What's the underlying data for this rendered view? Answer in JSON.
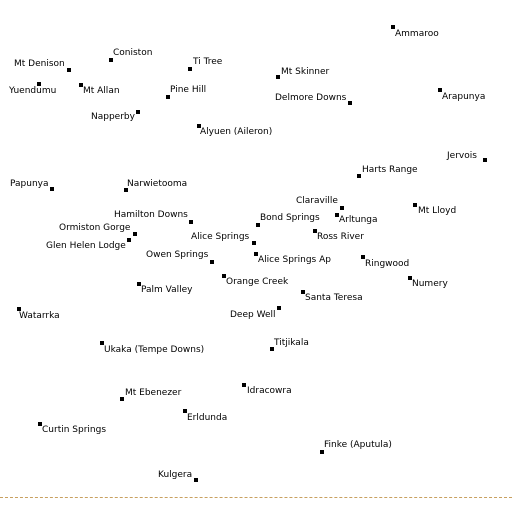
{
  "map": {
    "boundary_color": "#c8a060",
    "places": [
      {
        "id": "ammaroo",
        "name": "Ammaroo"
      },
      {
        "id": "coniston",
        "name": "Coniston"
      },
      {
        "id": "mt-denison",
        "name": "Mt Denison"
      },
      {
        "id": "ti-tree",
        "name": "Ti Tree"
      },
      {
        "id": "mt-skinner",
        "name": "Mt Skinner"
      },
      {
        "id": "yuendumu",
        "name": "Yuendumu"
      },
      {
        "id": "mt-allan",
        "name": "Mt Allan"
      },
      {
        "id": "pine-hill",
        "name": "Pine Hill"
      },
      {
        "id": "delmore-downs",
        "name": "Delmore Downs"
      },
      {
        "id": "arapunya",
        "name": "Arapunya"
      },
      {
        "id": "napperby",
        "name": "Napperby"
      },
      {
        "id": "alyuen",
        "name": "Alyuen (Aileron)"
      },
      {
        "id": "jervois",
        "name": "Jervois"
      },
      {
        "id": "harts-range",
        "name": "Harts Range"
      },
      {
        "id": "papunya",
        "name": "Papunya"
      },
      {
        "id": "narwietooma",
        "name": "Narwietooma"
      },
      {
        "id": "claraville",
        "name": "Claraville"
      },
      {
        "id": "mt-lloyd",
        "name": "Mt Lloyd"
      },
      {
        "id": "hamilton-downs",
        "name": "Hamilton Downs"
      },
      {
        "id": "bond-springs",
        "name": "Bond Springs"
      },
      {
        "id": "arltunga",
        "name": "Arltunga"
      },
      {
        "id": "ormiston-gorge",
        "name": "Ormiston Gorge"
      },
      {
        "id": "alice-springs",
        "name": "Alice Springs"
      },
      {
        "id": "ross-river",
        "name": "Ross River"
      },
      {
        "id": "glen-helen-lodge",
        "name": "Glen Helen Lodge"
      },
      {
        "id": "owen-springs",
        "name": "Owen Springs"
      },
      {
        "id": "alice-springs-ap",
        "name": "Alice Springs Ap"
      },
      {
        "id": "ringwood",
        "name": "Ringwood"
      },
      {
        "id": "orange-creek",
        "name": "Orange Creek"
      },
      {
        "id": "numery",
        "name": "Numery"
      },
      {
        "id": "palm-valley",
        "name": "Palm Valley"
      },
      {
        "id": "santa-teresa",
        "name": "Santa Teresa"
      },
      {
        "id": "watarrka",
        "name": "Watarrka"
      },
      {
        "id": "deep-well",
        "name": "Deep Well"
      },
      {
        "id": "titjikala",
        "name": "Titjikala"
      },
      {
        "id": "ukaka",
        "name": "Ukaka (Tempe Downs)"
      },
      {
        "id": "idracowra",
        "name": "Idracowra"
      },
      {
        "id": "mt-ebenezer",
        "name": "Mt Ebenezer"
      },
      {
        "id": "erldunda",
        "name": "Erldunda"
      },
      {
        "id": "curtin-springs",
        "name": "Curtin Springs"
      },
      {
        "id": "finke",
        "name": "Finke (Aputula)"
      },
      {
        "id": "kulgera",
        "name": "Kulgera"
      }
    ]
  }
}
